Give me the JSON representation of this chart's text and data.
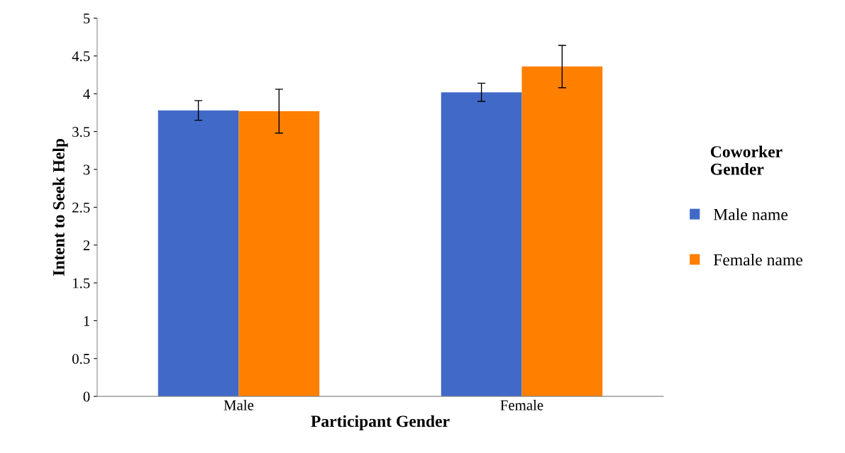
{
  "chart_data": {
    "type": "bar",
    "xlabel": "Participant Gender",
    "ylabel": "Intent to Seek Help",
    "legend_title": "Coworker\nGender",
    "categories": [
      "Male",
      "Female"
    ],
    "series": [
      {
        "name": "Male name",
        "color": "#4169c8",
        "values": [
          3.78,
          4.02
        ],
        "errors": [
          0.13,
          0.12
        ]
      },
      {
        "name": "Female name",
        "color": "#ff7f00",
        "values": [
          3.77,
          4.36
        ],
        "errors": [
          0.29,
          0.28
        ]
      }
    ],
    "ylim": [
      0,
      5
    ],
    "yticks": [
      0,
      {
        "value": 0.5,
        "label": "0.5"
      },
      1,
      {
        "value": 1.5,
        "label": "1.5"
      },
      2,
      {
        "value": 2.5,
        "label": "2.5"
      },
      3,
      {
        "value": 3.5,
        "label": "3.5"
      },
      4,
      {
        "value": 4.5,
        "label": "4.5"
      },
      5
    ],
    "legend": "right",
    "grid": false
  }
}
